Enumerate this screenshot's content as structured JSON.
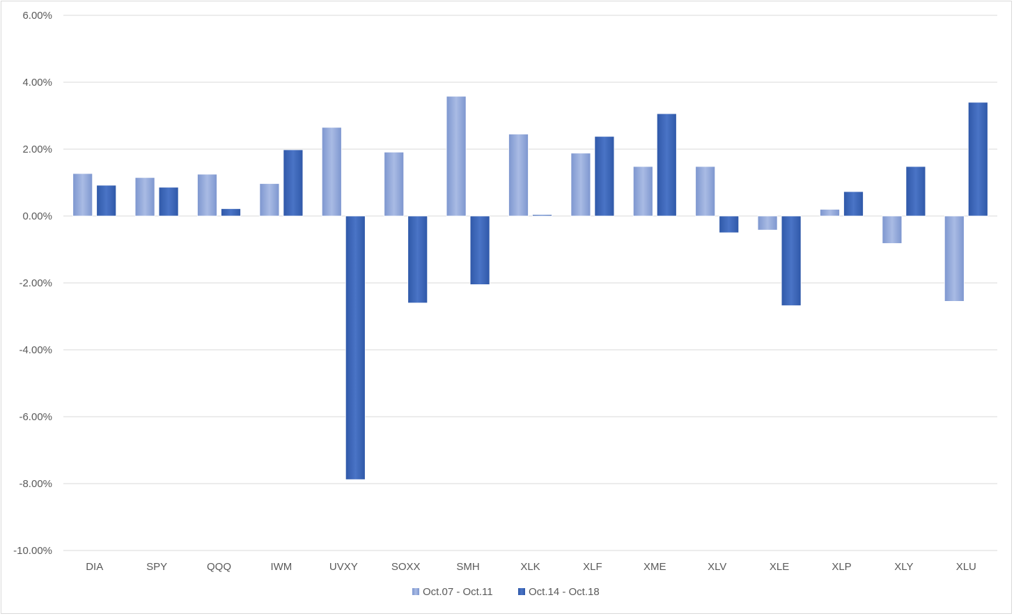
{
  "chart_data": {
    "type": "bar",
    "title": "",
    "xlabel": "",
    "ylabel": "",
    "categories": [
      "DIA",
      "SPY",
      "QQQ",
      "IWM",
      "UVXY",
      "SOXX",
      "SMH",
      "XLK",
      "XLF",
      "XME",
      "XLV",
      "XLE",
      "XLP",
      "XLY",
      "XLU"
    ],
    "series": [
      {
        "name": "Oct.07 - Oct.11",
        "color": "#8fa6d8",
        "values": [
          1.27,
          1.15,
          1.25,
          0.97,
          2.65,
          1.91,
          3.58,
          2.45,
          1.88,
          1.48,
          1.48,
          -0.42,
          0.2,
          -0.82,
          -2.55
        ]
      },
      {
        "name": "Oct.14 - Oct.18",
        "color": "#3a63b8",
        "values": [
          0.92,
          0.86,
          0.22,
          1.98,
          -7.88,
          -2.6,
          -2.05,
          0.04,
          2.38,
          3.06,
          -0.5,
          -2.68,
          0.73,
          1.48,
          3.4
        ]
      }
    ],
    "ylim": [
      -10,
      6
    ],
    "yticks": [
      6,
      4,
      2,
      0,
      -2,
      -4,
      -6,
      -8,
      -10
    ],
    "ytick_labels": [
      "6.00%",
      "4.00%",
      "2.00%",
      "0.00%",
      "-2.00%",
      "-4.00%",
      "-6.00%",
      "-8.00%",
      "-10.00%"
    ],
    "grid": true,
    "legend_position": "bottom"
  }
}
